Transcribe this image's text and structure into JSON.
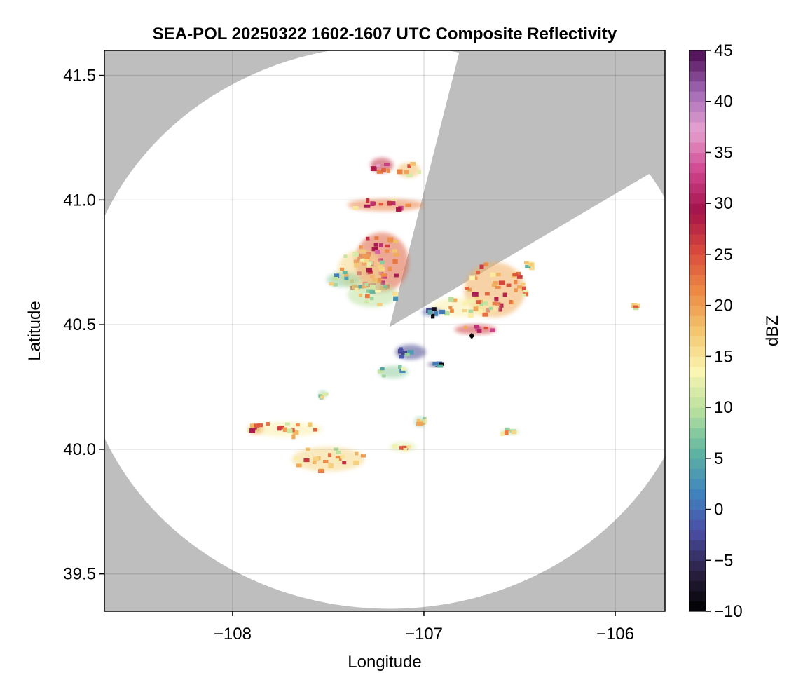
{
  "chart_data": {
    "type": "heatmap",
    "title": "SEA-POL 20250322 1602-1607 UTC Composite Reflectivity",
    "xlabel": "Longitude",
    "ylabel": "Latitude",
    "xlim": [
      -108.67,
      -105.74
    ],
    "ylim": [
      39.35,
      41.6
    ],
    "xticks": [
      -108,
      -107,
      -106
    ],
    "xtick_labels": [
      "−108",
      "−107",
      "−106"
    ],
    "yticks": [
      39.5,
      40.0,
      40.5,
      41.0,
      41.5
    ],
    "ytick_labels": [
      "39.5",
      "40.0",
      "40.5",
      "41.0",
      "41.5"
    ],
    "grid": true,
    "background_color": "#bebebe",
    "coverage_color": "#ffffff",
    "radar": {
      "center_lon": -107.18,
      "center_lat": 40.49,
      "range_deg_lon": 1.62,
      "range_deg_lat": 1.13,
      "blocked_sectors_deg_from_north": [
        [
          13,
          57
        ]
      ]
    },
    "marker": {
      "lon": -106.75,
      "lat": 40.455,
      "color": "#000000",
      "shape": "diamond"
    },
    "colorbar": {
      "label": "dBZ",
      "min": -10,
      "max": 45,
      "ticks": [
        -10,
        -5,
        0,
        5,
        10,
        15,
        20,
        25,
        30,
        35,
        40,
        45
      ],
      "tick_labels": [
        "−10",
        "−5",
        "0",
        "5",
        "10",
        "15",
        "20",
        "25",
        "30",
        "35",
        "40",
        "45"
      ],
      "colormap": "spectral_r",
      "stops": [
        "#000000",
        "#2b2142",
        "#4b4ea6",
        "#3f86bf",
        "#5fb6a0",
        "#b7e09e",
        "#fbf5b1",
        "#f3c66f",
        "#ed8a45",
        "#d84a3c",
        "#a3124a",
        "#d0468f",
        "#e6a2cf",
        "#a067b4",
        "#4b0a50"
      ]
    },
    "echo_regions": [
      {
        "lon": -107.22,
        "lat": 40.75,
        "rlon": 0.14,
        "rlat": 0.12,
        "dbz": 30
      },
      {
        "lon": -107.33,
        "lat": 40.72,
        "rlon": 0.12,
        "rlat": 0.08,
        "dbz": 22
      },
      {
        "lon": -107.27,
        "lat": 40.62,
        "rlon": 0.13,
        "rlat": 0.05,
        "dbz": 16
      },
      {
        "lon": -107.42,
        "lat": 40.68,
        "rlon": 0.09,
        "rlat": 0.03,
        "dbz": 14
      },
      {
        "lon": -107.22,
        "lat": 41.14,
        "rlon": 0.06,
        "rlat": 0.03,
        "dbz": 33
      },
      {
        "lon": -107.08,
        "lat": 41.12,
        "rlon": 0.06,
        "rlat": 0.03,
        "dbz": 24
      },
      {
        "lon": -107.2,
        "lat": 40.98,
        "rlon": 0.2,
        "rlat": 0.025,
        "dbz": 28
      },
      {
        "lon": -106.63,
        "lat": 40.64,
        "rlon": 0.16,
        "rlat": 0.11,
        "dbz": 25
      },
      {
        "lon": -106.78,
        "lat": 40.57,
        "rlon": 0.18,
        "rlat": 0.04,
        "dbz": 20
      },
      {
        "lon": -106.73,
        "lat": 40.48,
        "rlon": 0.11,
        "rlat": 0.02,
        "dbz": 32
      },
      {
        "lon": -106.96,
        "lat": 40.55,
        "rlon": 0.05,
        "rlat": 0.015,
        "dbz": 5
      },
      {
        "lon": -106.45,
        "lat": 40.74,
        "rlon": 0.02,
        "rlat": 0.015,
        "dbz": 18
      },
      {
        "lon": -105.9,
        "lat": 40.575,
        "rlon": 0.015,
        "rlat": 0.008,
        "dbz": 22
      },
      {
        "lon": -107.07,
        "lat": 40.39,
        "rlon": 0.08,
        "rlat": 0.03,
        "dbz": 3
      },
      {
        "lon": -107.16,
        "lat": 40.31,
        "rlon": 0.08,
        "rlat": 0.025,
        "dbz": 14
      },
      {
        "lon": -106.94,
        "lat": 40.34,
        "rlon": 0.04,
        "rlat": 0.01,
        "dbz": 2
      },
      {
        "lon": -107.5,
        "lat": 39.96,
        "rlon": 0.19,
        "rlat": 0.05,
        "dbz": 22
      },
      {
        "lon": -107.72,
        "lat": 40.08,
        "rlon": 0.19,
        "rlat": 0.03,
        "dbz": 20
      },
      {
        "lon": -107.11,
        "lat": 40.01,
        "rlon": 0.07,
        "rlat": 0.02,
        "dbz": 18
      },
      {
        "lon": -107.02,
        "lat": 40.11,
        "rlon": 0.03,
        "rlat": 0.02,
        "dbz": 14
      },
      {
        "lon": -107.53,
        "lat": 40.22,
        "rlon": 0.02,
        "rlat": 0.015,
        "dbz": 13
      },
      {
        "lon": -106.55,
        "lat": 40.07,
        "rlon": 0.05,
        "rlat": 0.012,
        "dbz": 16
      },
      {
        "lon": -107.88,
        "lat": 40.08,
        "rlon": 0.04,
        "rlat": 0.02,
        "dbz": 26
      }
    ]
  }
}
